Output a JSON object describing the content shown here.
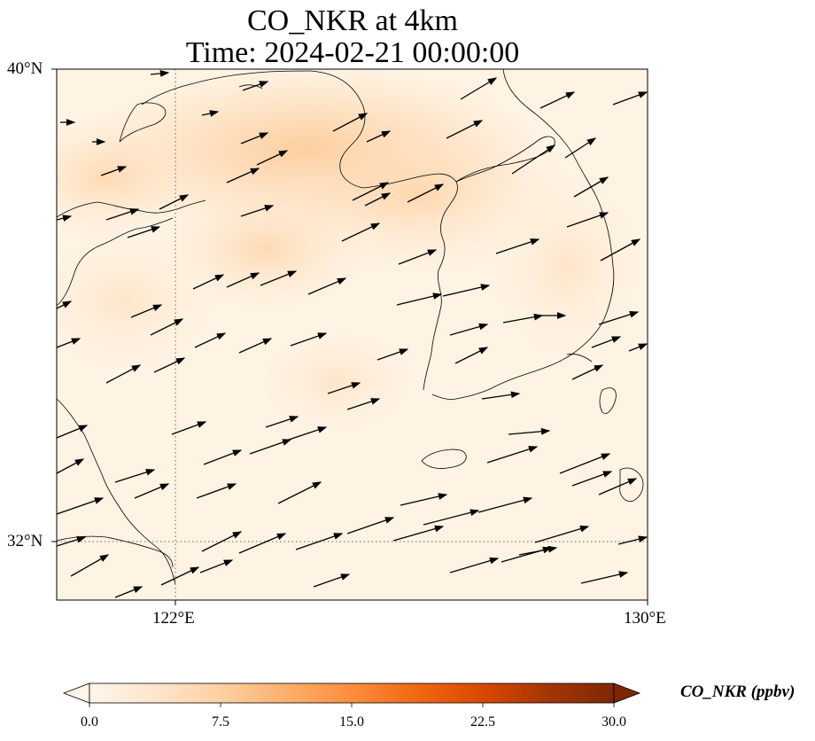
{
  "title": {
    "line1": "CO_NKR at 4km",
    "line2": "Time: 2024-02-21 00:00:00"
  },
  "map": {
    "lat_labels": [
      "40°N",
      "32°N"
    ],
    "lon_labels": [
      "122°E",
      "130°E"
    ],
    "extent": {
      "lon_min": 120,
      "lon_max": 130,
      "lat_min": 31,
      "lat_max": 40
    },
    "gridlines": {
      "lon": [
        122
      ],
      "lat": [
        32
      ],
      "style": "dotted"
    },
    "field": "CO_NKR",
    "height": "4km",
    "vectors": "wind arrows"
  },
  "colorbar": {
    "label": "CO_NKR (ppbv)",
    "ticks": [
      "0.0",
      "7.5",
      "15.0",
      "22.5",
      "30.0"
    ],
    "min": 0,
    "max": 30,
    "extend": "both",
    "colormap": [
      "#fff5eb",
      "#fee6ce",
      "#fdd0a2",
      "#fdae6b",
      "#fd8d3c",
      "#f16913",
      "#d94801",
      "#a63603",
      "#7f2704"
    ]
  }
}
